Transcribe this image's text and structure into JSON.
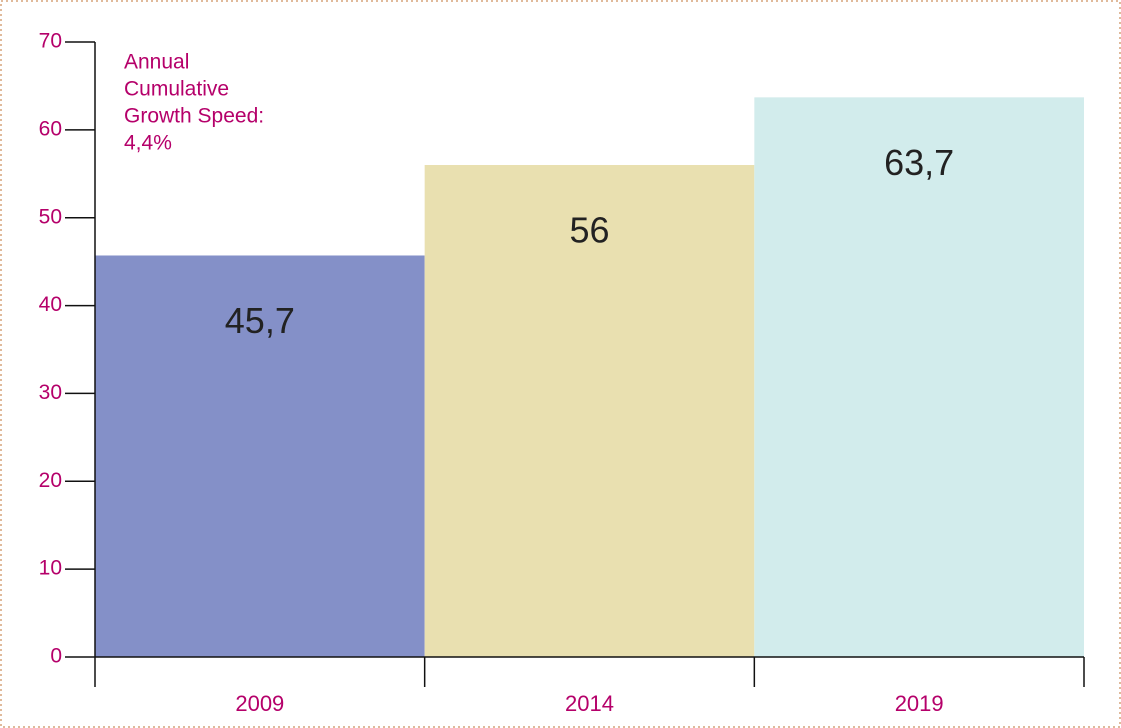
{
  "chart_data": {
    "type": "bar",
    "categories": [
      "2009",
      "2014",
      "2019"
    ],
    "values": [
      45.7,
      56,
      63.7
    ],
    "value_labels": [
      "45,7",
      "56",
      "63,7"
    ],
    "colors": [
      "#8490c8",
      "#e9e0b0",
      "#d2ecec"
    ],
    "ylim": [
      0,
      70
    ],
    "yticks": [
      0,
      10,
      20,
      30,
      40,
      50,
      60,
      70
    ],
    "annotation": [
      "Annual",
      "Cumulative",
      "Growth Speed:",
      "4,4%"
    ]
  }
}
